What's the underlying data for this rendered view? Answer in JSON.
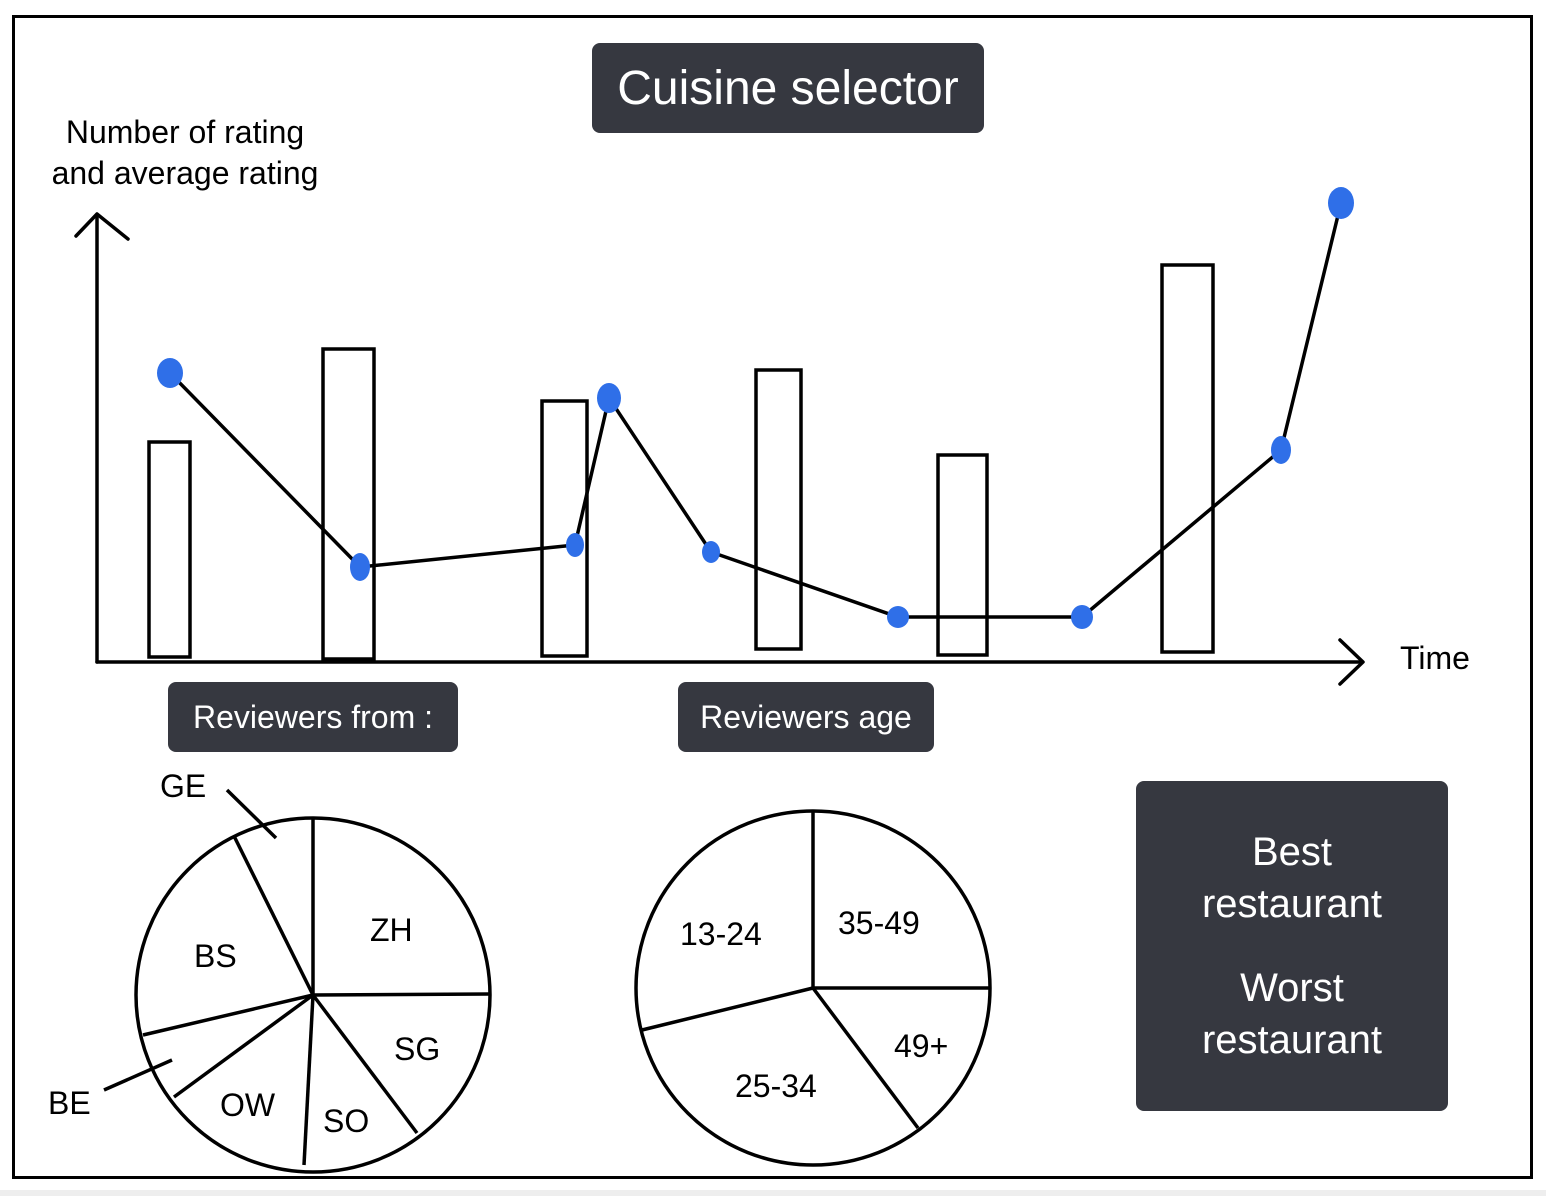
{
  "header": {
    "cuisine_selector_label": "Cuisine selector"
  },
  "main_chart": {
    "ylabel_line1": "Number of rating",
    "ylabel_line2": "and average rating",
    "xlabel": "Time"
  },
  "reviewers_from": {
    "button_label": "Reviewers from :",
    "slices": [
      {
        "label": "ZH",
        "fraction": 0.25
      },
      {
        "label": "SG",
        "fraction": 0.146
      },
      {
        "label": "SO",
        "fraction": 0.105
      },
      {
        "label": "OW",
        "fraction": 0.118
      },
      {
        "label": "BE",
        "fraction": 0.056
      },
      {
        "label": "BS",
        "fraction": 0.253
      },
      {
        "label": "GE",
        "fraction": 0.072
      }
    ]
  },
  "reviewers_age": {
    "button_label": "Reviewers age",
    "slices": [
      {
        "label": "35-49",
        "fraction": 0.25
      },
      {
        "label": "49+",
        "fraction": 0.15
      },
      {
        "label": "25-34",
        "fraction": 0.294
      },
      {
        "label": "13-24",
        "fraction": 0.306
      }
    ]
  },
  "restaurant_panel": {
    "best_line1": "Best",
    "best_line2": "restaurant",
    "worst_line1": "Worst",
    "worst_line2": "restaurant"
  },
  "colors": {
    "point": "#2f6fe8",
    "button_bg": "#363840",
    "button_text": "#ffffff"
  }
}
